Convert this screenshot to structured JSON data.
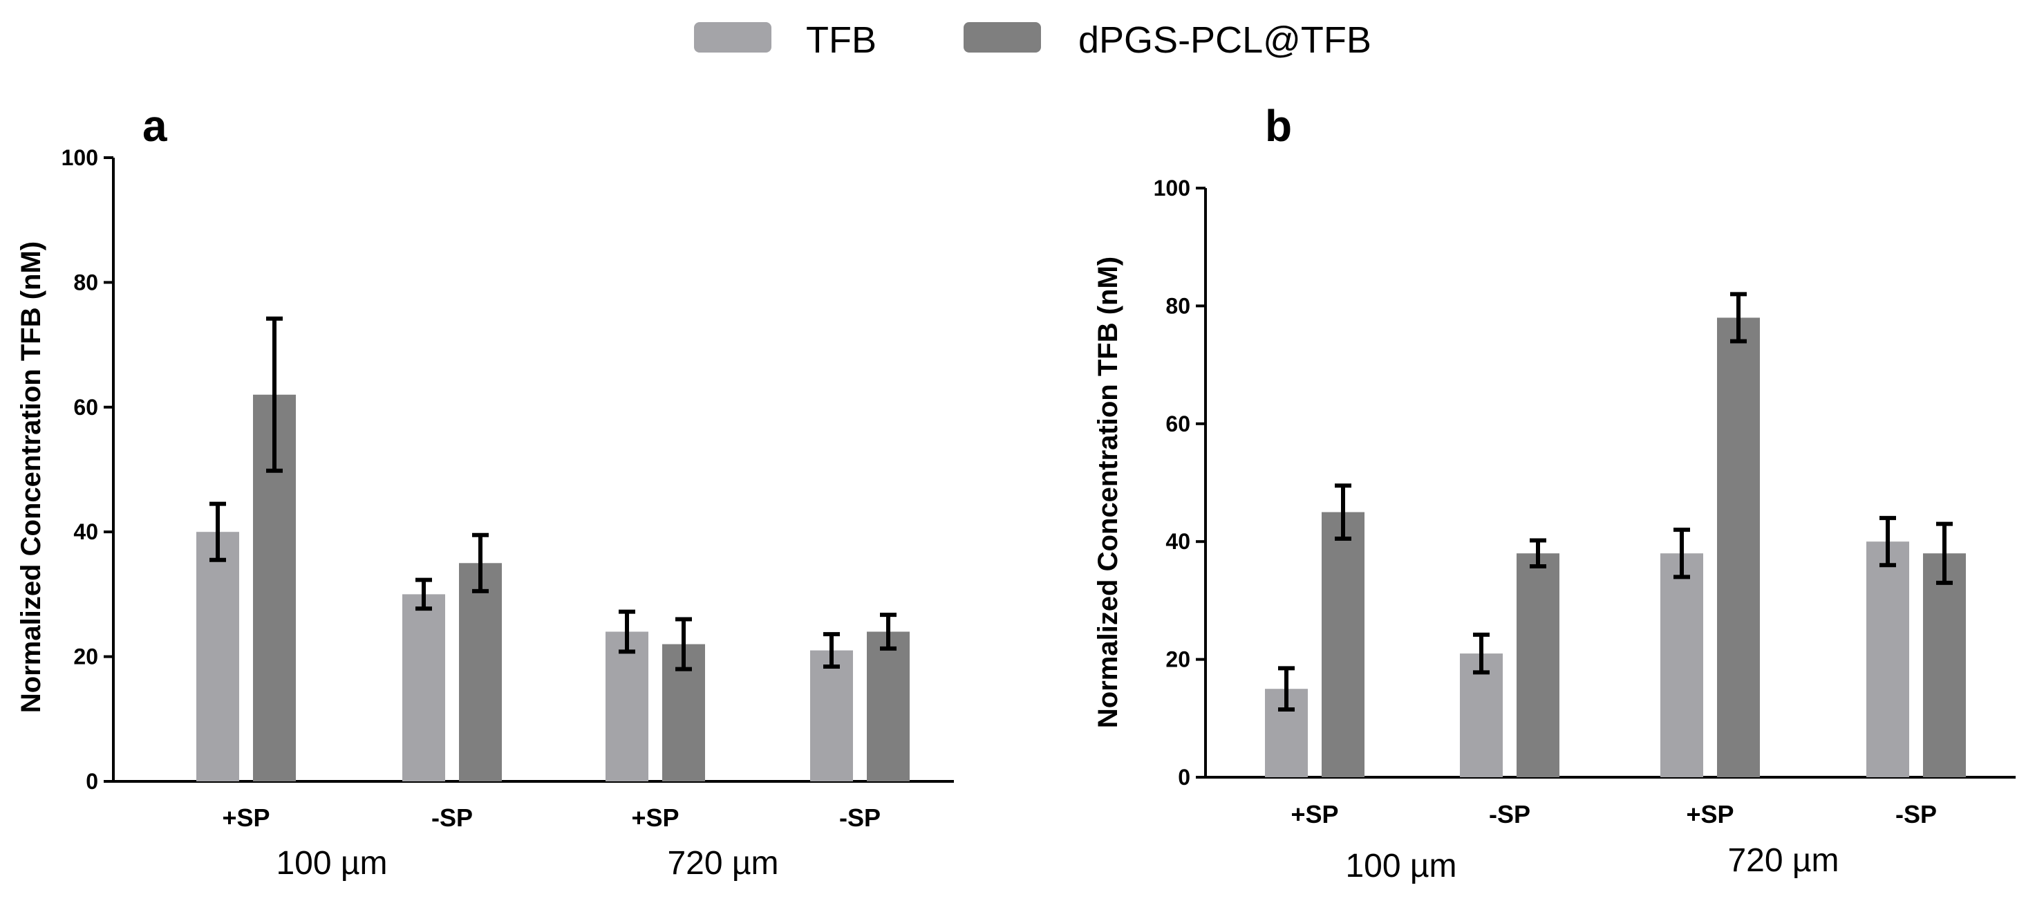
{
  "colors": {
    "tfb": "#a4a4a8",
    "dpgs": "#7f7f7f",
    "axis": "#000000"
  },
  "legend": [
    {
      "key": "tfb",
      "label": "TFB"
    },
    {
      "key": "dpgs",
      "label": "dPGS-PCL@TFB"
    }
  ],
  "chart_data": [
    {
      "type": "bar",
      "panel": "a",
      "ylabel": "Normalized Concentration TFB (nM)",
      "xlabel": "",
      "ylim": [
        0,
        100
      ],
      "yticks": [
        0,
        20,
        40,
        60,
        80,
        100
      ],
      "categories": [
        "+SP",
        "-SP",
        "+SP",
        "-SP"
      ],
      "groups": [
        {
          "label": "100 µm",
          "categories": [
            0,
            1
          ]
        },
        {
          "label": "720 µm",
          "categories": [
            2,
            3
          ]
        }
      ],
      "series": [
        {
          "name": "TFB",
          "values": [
            40,
            30,
            24,
            21
          ],
          "errors": [
            4.5,
            2.3,
            3.2,
            2.6
          ]
        },
        {
          "name": "dPGS-PCL@TFB",
          "values": [
            62,
            35,
            22,
            24
          ],
          "errors": [
            12.2,
            4.5,
            4,
            2.7
          ]
        }
      ]
    },
    {
      "type": "bar",
      "panel": "b",
      "ylabel": "Normalized Concentration TFB (nM)",
      "xlabel": "",
      "ylim": [
        0,
        100
      ],
      "yticks": [
        0,
        20,
        40,
        60,
        80,
        100
      ],
      "categories": [
        "+SP",
        "-SP",
        "+SP",
        "-SP"
      ],
      "groups": [
        {
          "label": "100 µm",
          "categories": [
            0,
            1
          ]
        },
        {
          "label": "720 µm",
          "categories": [
            2,
            3
          ]
        }
      ],
      "series": [
        {
          "name": "TFB",
          "values": [
            15,
            21,
            38,
            40
          ],
          "errors": [
            3.5,
            3.2,
            4,
            4
          ]
        },
        {
          "name": "dPGS-PCL@TFB",
          "values": [
            45,
            38,
            78,
            38
          ],
          "errors": [
            4.5,
            2.2,
            4,
            5
          ]
        }
      ]
    }
  ]
}
